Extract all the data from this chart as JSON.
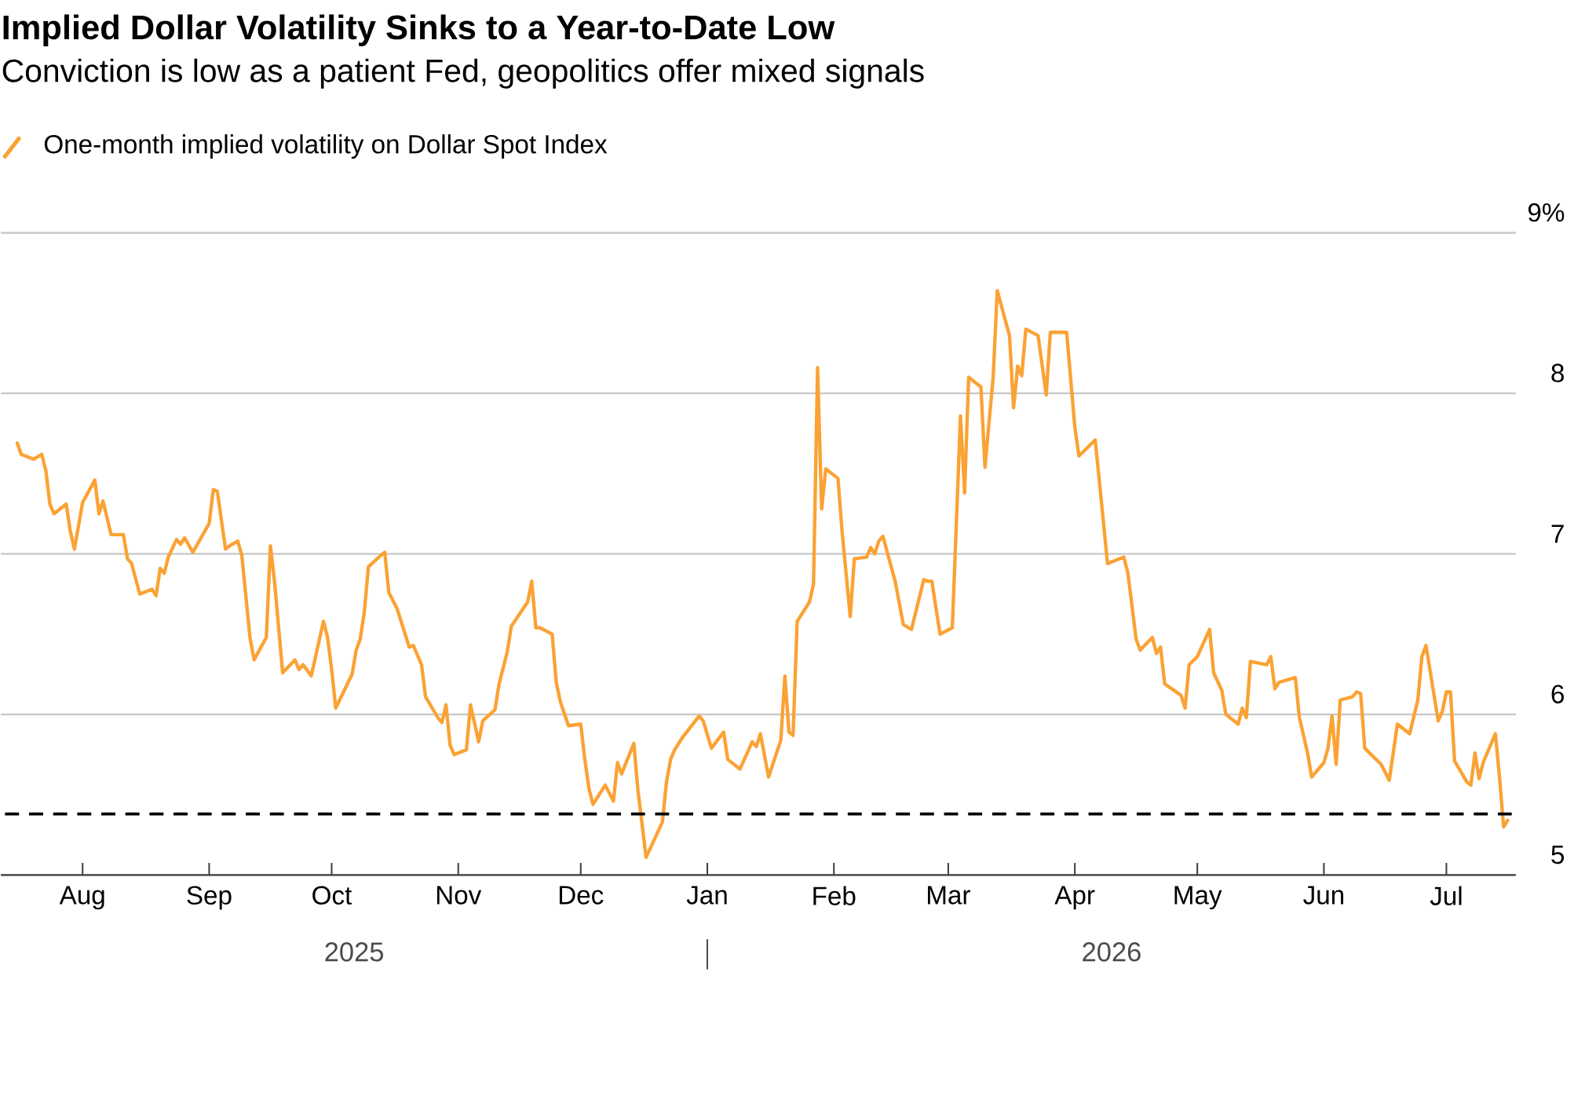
{
  "chart_data": {
    "type": "line",
    "title": "Implied Dollar Volatility Sinks to a Year-to-Date Low",
    "subtitle": "Conviction is low as a patient Fed, geopolitics offer mixed signals",
    "annotations": [
      "2025",
      "2026"
    ],
    "legend": "top left",
    "grid": "y",
    "marker": "none",
    "line_style": "solid",
    "xlim": [
      "2025-07-12",
      "2026-07-18"
    ],
    "xticks": [
      {
        "value": "2025-08-01",
        "label": "Aug"
      },
      {
        "value": "2025-09-01",
        "label": "Sep"
      },
      {
        "value": "2025-10-01",
        "label": "Oct"
      },
      {
        "value": "2025-11-01",
        "label": "Nov"
      },
      {
        "value": "2025-12-01",
        "label": "Dec"
      },
      {
        "value": "2026-01-01",
        "label": "Jan"
      },
      {
        "value": "2026-02-01",
        "label": "Feb"
      },
      {
        "value": "2026-03-01",
        "label": "Mar"
      },
      {
        "value": "2026-04-01",
        "label": "Apr"
      },
      {
        "value": "2026-05-01",
        "label": "May"
      },
      {
        "value": "2026-06-01",
        "label": "Jun"
      },
      {
        "value": "2026-07-01",
        "label": "Jul"
      }
    ],
    "ylim": [
      5,
      9
    ],
    "yticks": [
      5,
      6,
      7,
      8,
      {
        "value": 9,
        "label": "9%"
      }
    ],
    "ref_lines": [
      {
        "axis": "y",
        "value": 5.38,
        "color": "#000000",
        "line_style": "dashed"
      }
    ],
    "series": [
      {
        "name": "One-month implied volatility on Dollar Spot Index",
        "color": "#fba234",
        "x": [
          "2025-07-16",
          "2025-07-17",
          "2025-07-20",
          "2025-07-22",
          "2025-07-23",
          "2025-07-24",
          "2025-07-25",
          "2025-07-28",
          "2025-07-29",
          "2025-07-30",
          "2025-08-01",
          "2025-08-04",
          "2025-08-05",
          "2025-08-06",
          "2025-08-08",
          "2025-08-11",
          "2025-08-12",
          "2025-08-13",
          "2025-08-15",
          "2025-08-18",
          "2025-08-19",
          "2025-08-20",
          "2025-08-21",
          "2025-08-22",
          "2025-08-24",
          "2025-08-25",
          "2025-08-26",
          "2025-08-28",
          "2025-09-01",
          "2025-09-02",
          "2025-09-03",
          "2025-09-05",
          "2025-09-06",
          "2025-09-08",
          "2025-09-09",
          "2025-09-11",
          "2025-09-12",
          "2025-09-15",
          "2025-09-16",
          "2025-09-17",
          "2025-09-19",
          "2025-09-22",
          "2025-09-23",
          "2025-09-24",
          "2025-09-26",
          "2025-09-29",
          "2025-09-30",
          "2025-10-01",
          "2025-10-02",
          "2025-10-06",
          "2025-10-07",
          "2025-10-08",
          "2025-10-09",
          "2025-10-10",
          "2025-10-13",
          "2025-10-14",
          "2025-10-15",
          "2025-10-17",
          "2025-10-20",
          "2025-10-21",
          "2025-10-23",
          "2025-10-24",
          "2025-10-27",
          "2025-10-28",
          "2025-10-29",
          "2025-10-30",
          "2025-10-31",
          "2025-11-03",
          "2025-11-04",
          "2025-11-06",
          "2025-11-07",
          "2025-11-10",
          "2025-11-11",
          "2025-11-13",
          "2025-11-14",
          "2025-11-18",
          "2025-11-19",
          "2025-11-20",
          "2025-11-21",
          "2025-11-24",
          "2025-11-25",
          "2025-11-26",
          "2025-11-28",
          "2025-12-01",
          "2025-12-02",
          "2025-12-03",
          "2025-12-04",
          "2025-12-07",
          "2025-12-09",
          "2025-12-10",
          "2025-12-11",
          "2025-12-14",
          "2025-12-15",
          "2025-12-17",
          "2025-12-21",
          "2025-12-22",
          "2025-12-23",
          "2025-12-24",
          "2025-12-26",
          "2025-12-30",
          "2025-12-31",
          "2026-01-02",
          "2026-01-05",
          "2026-01-06",
          "2026-01-09",
          "2026-01-12",
          "2026-01-13",
          "2026-01-14",
          "2026-01-16",
          "2026-01-19",
          "2026-01-20",
          "2026-01-21",
          "2026-01-22",
          "2026-01-23",
          "2026-01-26",
          "2026-01-27",
          "2026-01-28",
          "2026-01-29",
          "2026-01-30",
          "2026-02-02",
          "2026-02-03",
          "2026-02-05",
          "2026-02-06",
          "2026-02-09",
          "2026-02-10",
          "2026-02-11",
          "2026-02-12",
          "2026-02-13",
          "2026-02-16",
          "2026-02-18",
          "2026-02-20",
          "2026-02-23",
          "2026-02-24",
          "2026-02-25",
          "2026-02-26",
          "2026-02-27",
          "2026-03-02",
          "2026-03-04",
          "2026-03-05",
          "2026-03-06",
          "2026-03-09",
          "2026-03-10",
          "2026-03-12",
          "2026-03-13",
          "2026-03-16",
          "2026-03-17",
          "2026-03-18",
          "2026-03-19",
          "2026-03-20",
          "2026-03-23",
          "2026-03-25",
          "2026-03-26",
          "2026-03-30",
          "2026-04-01",
          "2026-04-02",
          "2026-04-06",
          "2026-04-08",
          "2026-04-09",
          "2026-04-13",
          "2026-04-14",
          "2026-04-16",
          "2026-04-17",
          "2026-04-20",
          "2026-04-21",
          "2026-04-22",
          "2026-04-23",
          "2026-04-27",
          "2026-04-28",
          "2026-04-29",
          "2026-05-01",
          "2026-05-04",
          "2026-05-05",
          "2026-05-07",
          "2026-05-08",
          "2026-05-11",
          "2026-05-12",
          "2026-05-13",
          "2026-05-14",
          "2026-05-18",
          "2026-05-19",
          "2026-05-20",
          "2026-05-21",
          "2026-05-25",
          "2026-05-26",
          "2026-05-28",
          "2026-05-29",
          "2026-06-01",
          "2026-06-02",
          "2026-06-03",
          "2026-06-04",
          "2026-06-05",
          "2026-06-08",
          "2026-06-09",
          "2026-06-10",
          "2026-06-11",
          "2026-06-15",
          "2026-06-17",
          "2026-06-19",
          "2026-06-22",
          "2026-06-24",
          "2026-06-25",
          "2026-06-26",
          "2026-06-29",
          "2026-06-30",
          "2026-07-01",
          "2026-07-02",
          "2026-07-03",
          "2026-07-06",
          "2026-07-07",
          "2026-07-08",
          "2026-07-09",
          "2026-07-10",
          "2026-07-13",
          "2026-07-14",
          "2026-07-15",
          "2026-07-16"
        ],
        "values": [
          7.69,
          7.62,
          7.59,
          7.62,
          7.52,
          7.31,
          7.25,
          7.31,
          7.14,
          7.03,
          7.32,
          7.46,
          7.25,
          7.33,
          7.12,
          7.12,
          6.97,
          6.94,
          6.75,
          6.78,
          6.74,
          6.91,
          6.88,
          6.98,
          7.09,
          7.06,
          7.1,
          7.01,
          7.19,
          7.4,
          7.39,
          7.03,
          7.05,
          7.08,
          6.99,
          6.48,
          6.34,
          6.48,
          7.05,
          6.83,
          6.26,
          6.34,
          6.28,
          6.31,
          6.24,
          6.58,
          6.48,
          6.28,
          6.04,
          6.25,
          6.4,
          6.47,
          6.64,
          6.92,
          6.99,
          7.01,
          6.76,
          6.66,
          6.42,
          6.43,
          6.31,
          6.11,
          5.98,
          5.95,
          6.06,
          5.81,
          5.75,
          5.78,
          6.06,
          5.83,
          5.96,
          6.03,
          6.19,
          6.39,
          6.55,
          6.7,
          6.83,
          6.54,
          6.54,
          6.5,
          6.2,
          6.08,
          5.93,
          5.94,
          5.72,
          5.54,
          5.44,
          5.56,
          5.46,
          5.7,
          5.63,
          5.82,
          5.53,
          5.11,
          5.33,
          5.58,
          5.72,
          5.78,
          5.86,
          5.99,
          5.96,
          5.79,
          5.89,
          5.72,
          5.66,
          5.83,
          5.8,
          5.88,
          5.61,
          5.84,
          6.24,
          5.89,
          5.87,
          6.58,
          6.7,
          6.81,
          8.16,
          7.28,
          7.53,
          7.47,
          7.14,
          6.61,
          6.97,
          6.98,
          7.04,
          7.0,
          7.08,
          7.11,
          6.83,
          6.56,
          6.53,
          6.84,
          6.83,
          6.83,
          6.66,
          6.5,
          6.54,
          7.86,
          7.38,
          8.1,
          8.04,
          7.54,
          8.1,
          8.64,
          8.36,
          7.91,
          8.17,
          8.11,
          8.4,
          8.36,
          7.99,
          8.38,
          8.38,
          7.79,
          7.61,
          7.71,
          7.2,
          6.94,
          6.98,
          6.88,
          6.47,
          6.4,
          6.48,
          6.38,
          6.42,
          6.19,
          6.12,
          6.04,
          6.31,
          6.36,
          6.53,
          6.26,
          6.15,
          6.0,
          5.94,
          6.04,
          5.98,
          6.33,
          6.31,
          6.36,
          6.16,
          6.2,
          6.23,
          5.98,
          5.76,
          5.61,
          5.7,
          5.79,
          5.99,
          5.69,
          6.09,
          6.11,
          6.14,
          6.13,
          5.79,
          5.69,
          5.59,
          5.94,
          5.88,
          6.09,
          6.36,
          6.43,
          5.96,
          6.02,
          6.14,
          6.14,
          5.71,
          5.58,
          5.56,
          5.76,
          5.6,
          5.7,
          5.88,
          5.61,
          5.3,
          5.34
        ]
      }
    ]
  }
}
